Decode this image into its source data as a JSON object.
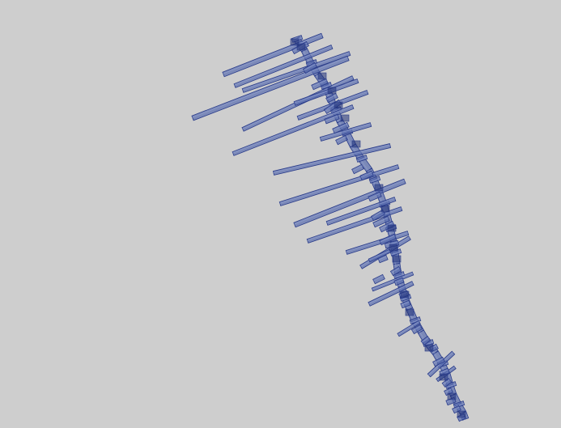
{
  "scene": {
    "subject": "3d-bar-spine-render",
    "background_color": "#cecece",
    "bar_fill_color": "#5c6fb0",
    "bar_stroke_color": "#2a3c8a",
    "bar_highlight_color": "#8e9ccc",
    "bar_shadow_color": "#1f2f78"
  }
}
